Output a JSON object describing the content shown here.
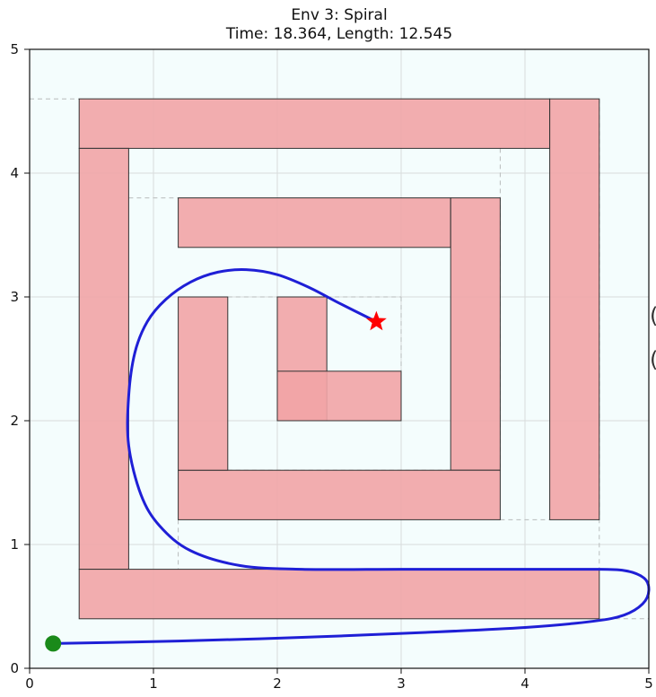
{
  "chart_data": {
    "type": "scatter",
    "title": "Env 3: Spiral",
    "subtitle": "Time: 18.364, Length: 12.545",
    "xlabel": "",
    "ylabel": "",
    "xlim": [
      0,
      5
    ],
    "ylim": [
      0,
      5
    ],
    "x_ticks": [
      "0",
      "1",
      "2",
      "3",
      "4",
      "5"
    ],
    "y_ticks": [
      "0",
      "1",
      "2",
      "3",
      "4",
      "5"
    ],
    "grid": true,
    "colors": {
      "background": "#f4fdfd",
      "obstacle_fill": "#f2a4a6",
      "obstacle_edge": "#333333",
      "path": "#1f1fd6",
      "start": "#1a8a1a",
      "goal": "#ff0000",
      "grid": "#d8dcdc"
    },
    "obstacles": [
      {
        "x": 0.4,
        "y": 4.2,
        "w": 3.8,
        "h": 0.4
      },
      {
        "x": 4.2,
        "y": 1.2,
        "w": 0.4,
        "h": 3.4
      },
      {
        "x": 0.4,
        "y": 0.8,
        "w": 0.4,
        "h": 3.4
      },
      {
        "x": 0.4,
        "y": 0.4,
        "w": 4.2,
        "h": 0.4
      },
      {
        "x": 1.2,
        "y": 3.4,
        "w": 2.2,
        "h": 0.4
      },
      {
        "x": 3.4,
        "y": 1.6,
        "w": 0.4,
        "h": 2.2
      },
      {
        "x": 1.2,
        "y": 1.2,
        "w": 2.6,
        "h": 0.4
      },
      {
        "x": 1.2,
        "y": 1.6,
        "w": 0.4,
        "h": 1.4
      },
      {
        "x": 2.0,
        "y": 2.0,
        "w": 0.4,
        "h": 1.0
      },
      {
        "x": 2.0,
        "y": 2.0,
        "w": 1.0,
        "h": 0.4
      }
    ],
    "dashed_segments": [
      [
        [
          0.0,
          4.6
        ],
        [
          0.4,
          4.6
        ]
      ],
      [
        [
          4.6,
          4.6
        ],
        [
          4.6,
          0.8
        ]
      ],
      [
        [
          4.6,
          0.4
        ],
        [
          5.0,
          0.4
        ]
      ],
      [
        [
          0.8,
          3.8
        ],
        [
          1.2,
          3.8
        ]
      ],
      [
        [
          3.8,
          4.2
        ],
        [
          3.8,
          1.6
        ]
      ],
      [
        [
          3.8,
          1.2
        ],
        [
          4.2,
          1.2
        ]
      ],
      [
        [
          1.2,
          1.2
        ],
        [
          1.2,
          0.8
        ]
      ],
      [
        [
          1.6,
          3.0
        ],
        [
          2.0,
          3.0
        ]
      ],
      [
        [
          1.6,
          1.6
        ],
        [
          3.4,
          1.6
        ]
      ],
      [
        [
          2.4,
          3.0
        ],
        [
          3.0,
          3.0
        ]
      ],
      [
        [
          3.0,
          3.0
        ],
        [
          3.0,
          2.4
        ]
      ]
    ],
    "start": {
      "x": 0.19,
      "y": 0.2
    },
    "goal": {
      "x": 2.8,
      "y": 2.8
    },
    "path": [
      [
        0.19,
        0.2
      ],
      [
        1.2,
        0.22
      ],
      [
        2.2,
        0.25
      ],
      [
        3.2,
        0.29
      ],
      [
        4.0,
        0.33
      ],
      [
        4.55,
        0.38
      ],
      [
        4.8,
        0.43
      ],
      [
        4.95,
        0.52
      ],
      [
        5.0,
        0.63
      ],
      [
        4.96,
        0.73
      ],
      [
        4.8,
        0.79
      ],
      [
        4.5,
        0.8
      ],
      [
        3.8,
        0.8
      ],
      [
        3.0,
        0.8
      ],
      [
        2.2,
        0.8
      ],
      [
        1.7,
        0.83
      ],
      [
        1.3,
        0.95
      ],
      [
        1.05,
        1.15
      ],
      [
        0.9,
        1.4
      ],
      [
        0.8,
        1.8
      ],
      [
        0.8,
        2.2
      ],
      [
        0.85,
        2.55
      ],
      [
        0.95,
        2.8
      ],
      [
        1.1,
        2.98
      ],
      [
        1.3,
        3.12
      ],
      [
        1.52,
        3.2
      ],
      [
        1.75,
        3.22
      ],
      [
        2.0,
        3.18
      ],
      [
        2.25,
        3.08
      ],
      [
        2.5,
        2.95
      ],
      [
        2.8,
        2.8
      ]
    ]
  },
  "edge_glyphs": [
    "(",
    "("
  ]
}
